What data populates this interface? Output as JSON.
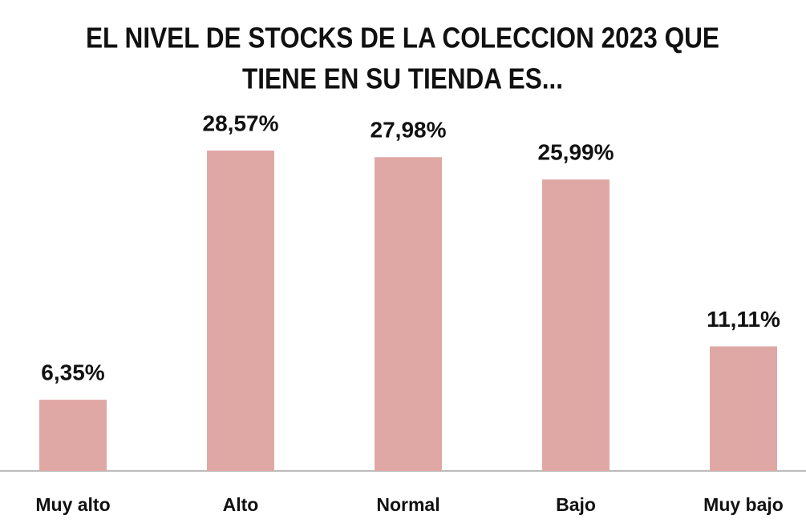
{
  "chart_data": {
    "type": "bar",
    "title": [
      "EL NIVEL DE STOCKS DE LA COLECCION 2023 QUE",
      "TIENE EN SU TIENDA ES..."
    ],
    "categories": [
      "Muy alto",
      "Alto",
      "Normal",
      "Bajo",
      "Muy bajo"
    ],
    "values": [
      6.35,
      28.57,
      27.98,
      25.99,
      11.11
    ],
    "value_labels": [
      "6,35%",
      "28,57%",
      "27,98%",
      "25,99%",
      "11,11%"
    ],
    "color": "#e0a8a5"
  }
}
